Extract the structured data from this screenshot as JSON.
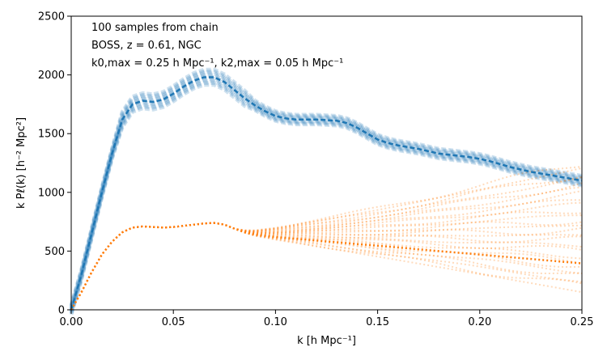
{
  "chart_data": {
    "type": "line",
    "title": "",
    "xlabel": "k   [h Mpc⁻¹]",
    "ylabel": "k Pℓ(k)   [h⁻² Mpc²]",
    "xlim": [
      0.0,
      0.25
    ],
    "ylim": [
      0,
      2500
    ],
    "xticks": [
      0.0,
      0.05,
      0.1,
      0.15,
      0.2,
      0.25
    ],
    "xtick_labels": [
      "0.00",
      "0.05",
      "0.10",
      "0.15",
      "0.20",
      "0.25"
    ],
    "yticks": [
      0,
      500,
      1000,
      1500,
      2000,
      2500
    ],
    "ytick_labels": [
      "0",
      "500",
      "1000",
      "1500",
      "2000",
      "2500"
    ],
    "grid": false,
    "annotations": [
      "100 samples from chain",
      "BOSS, z = 0.61, NGC",
      "k0,max = 0.25 h Mpc⁻¹,  k2,max = 0.05 h Mpc⁻¹"
    ],
    "series": [
      {
        "color": "#1f77b4",
        "style": "dashed",
        "x": [
          0.0,
          0.005,
          0.01,
          0.015,
          0.02,
          0.025,
          0.03,
          0.035,
          0.04,
          0.045,
          0.05,
          0.055,
          0.06,
          0.065,
          0.07,
          0.075,
          0.08,
          0.085,
          0.09,
          0.095,
          0.1,
          0.105,
          0.11,
          0.115,
          0.12,
          0.125,
          0.13,
          0.135,
          0.14,
          0.145,
          0.15,
          0.155,
          0.16,
          0.165,
          0.17,
          0.175,
          0.18,
          0.185,
          0.19,
          0.195,
          0.2,
          0.205,
          0.21,
          0.215,
          0.22,
          0.225,
          0.23,
          0.235,
          0.24,
          0.245,
          0.25
        ],
        "y": [
          0,
          300,
          650,
          1000,
          1330,
          1620,
          1750,
          1780,
          1770,
          1790,
          1840,
          1900,
          1950,
          1980,
          1980,
          1940,
          1870,
          1800,
          1740,
          1690,
          1650,
          1630,
          1620,
          1620,
          1620,
          1615,
          1610,
          1590,
          1550,
          1500,
          1450,
          1420,
          1400,
          1385,
          1370,
          1350,
          1330,
          1320,
          1310,
          1300,
          1285,
          1265,
          1240,
          1215,
          1195,
          1175,
          1160,
          1145,
          1130,
          1115,
          1100
        ]
      },
      {
        "color": "#ff7f0e",
        "style": "dotted",
        "x": [
          0.0,
          0.005,
          0.01,
          0.015,
          0.02,
          0.025,
          0.03,
          0.035,
          0.04,
          0.045,
          0.05,
          0.055,
          0.06,
          0.065,
          0.07,
          0.075,
          0.08,
          0.085,
          0.09,
          0.095,
          0.1,
          0.105,
          0.11,
          0.115,
          0.12,
          0.125,
          0.13,
          0.135,
          0.14,
          0.145,
          0.15,
          0.155,
          0.16,
          0.165,
          0.17,
          0.175,
          0.18,
          0.185,
          0.19,
          0.195,
          0.2,
          0.205,
          0.21,
          0.215,
          0.22,
          0.225,
          0.23,
          0.235,
          0.24,
          0.245,
          0.25
        ],
        "y": [
          0,
          150,
          320,
          470,
          580,
          660,
          700,
          710,
          705,
          700,
          705,
          715,
          725,
          735,
          740,
          725,
          690,
          660,
          640,
          630,
          620,
          612,
          605,
          598,
          590,
          582,
          575,
          568,
          560,
          553,
          545,
          538,
          530,
          523,
          515,
          508,
          500,
          493,
          485,
          478,
          470,
          463,
          455,
          448,
          440,
          433,
          425,
          418,
          410,
          403,
          395
        ],
        "spread_end": [
          150,
          1250
        ]
      }
    ]
  }
}
